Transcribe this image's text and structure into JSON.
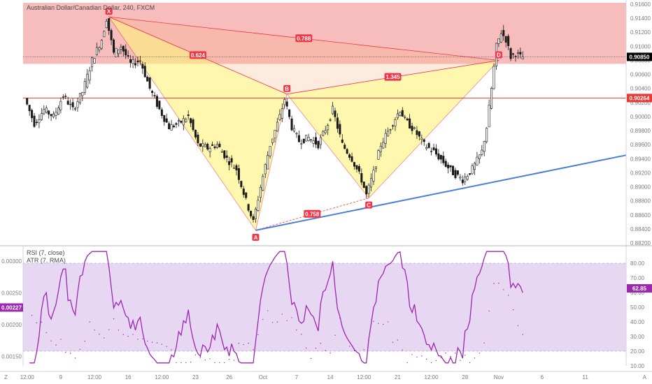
{
  "header": {
    "symbol_line": "Australian Dollar/Canadian Dollar, 240, FXCM"
  },
  "colors": {
    "up": "#1a1a1a",
    "down": "#1a1a1a",
    "pattern_fill": "#fff27a",
    "pattern_line": "#f23645",
    "zone_fill": "#f4a5a5",
    "trend": "#4a7fd8",
    "rsi": "#9c27b0",
    "rsi_band": "#e1cdf0",
    "atr": "#9c27b0"
  },
  "chart_data": [
    {
      "type": "candlestick",
      "y_axis_ticks": [
        "0.91600",
        "0.91400",
        "0.91200",
        "0.91000",
        "0.90800",
        "0.90600",
        "0.90400",
        "0.90200",
        "0.90000",
        "0.89800",
        "0.89600",
        "0.89400",
        "0.89200",
        "0.89000",
        "0.88800",
        "0.88600",
        "0.88400",
        "0.88200"
      ],
      "ylim": [
        0.8818,
        0.9162
      ],
      "x_axis_ticks": [
        "12:00",
        "9",
        "12:00",
        "16",
        "12:00",
        "23",
        "26",
        "Oct",
        "7",
        "14",
        "12:00",
        "21",
        "12:00",
        "28",
        "Nov",
        "6",
        "11"
      ],
      "path": [
        [
          0,
          0.9026
        ],
        [
          4,
          0.899
        ],
        [
          8,
          0.901
        ],
        [
          12,
          0.9
        ],
        [
          16,
          0.903
        ],
        [
          20,
          0.901
        ],
        [
          24,
          0.9035
        ],
        [
          28,
          0.908
        ],
        [
          32,
          0.911
        ],
        [
          34,
          0.914
        ],
        [
          37,
          0.909
        ],
        [
          40,
          0.91
        ],
        [
          44,
          0.9075
        ],
        [
          48,
          0.908
        ],
        [
          52,
          0.904
        ],
        [
          56,
          0.901
        ],
        [
          60,
          0.8985
        ],
        [
          64,
          0.899
        ],
        [
          68,
          0.9
        ],
        [
          72,
          0.896
        ],
        [
          76,
          0.8955
        ],
        [
          80,
          0.896
        ],
        [
          84,
          0.894
        ],
        [
          88,
          0.8925
        ],
        [
          92,
          0.888
        ],
        [
          95,
          0.885
        ],
        [
          98,
          0.89
        ],
        [
          102,
          0.896
        ],
        [
          106,
          0.9
        ],
        [
          108,
          0.9025
        ],
        [
          111,
          0.8985
        ],
        [
          114,
          0.8965
        ],
        [
          118,
          0.897
        ],
        [
          122,
          0.896
        ],
        [
          126,
          0.899
        ],
        [
          128,
          0.901
        ],
        [
          132,
          0.896
        ],
        [
          136,
          0.894
        ],
        [
          140,
          0.891
        ],
        [
          142,
          0.8888
        ],
        [
          145,
          0.892
        ],
        [
          148,
          0.896
        ],
        [
          152,
          0.8985
        ],
        [
          156,
          0.901
        ],
        [
          158,
          0.8995
        ],
        [
          162,
          0.898
        ],
        [
          166,
          0.896
        ],
        [
          170,
          0.895
        ],
        [
          174,
          0.8935
        ],
        [
          178,
          0.892
        ],
        [
          182,
          0.891
        ],
        [
          186,
          0.8925
        ],
        [
          190,
          0.895
        ],
        [
          192,
          0.8985
        ],
        [
          194,
          0.904
        ],
        [
          196,
          0.91
        ],
        [
          198,
          0.912
        ],
        [
          200,
          0.911
        ],
        [
          202,
          0.9085
        ],
        [
          204,
          0.909
        ],
        [
          206,
          0.9085
        ]
      ],
      "n_candles": 207,
      "points": [
        {
          "label": "X",
          "index": 34,
          "value": 0.9142
        },
        {
          "label": "A",
          "index": 95,
          "value": 0.8838
        },
        {
          "label": "B",
          "index": 108,
          "value": 0.9032
        },
        {
          "label": "C",
          "index": 142,
          "value": 0.8884
        },
        {
          "label": "D",
          "index": 196,
          "value": 0.908
        }
      ],
      "ratios": [
        {
          "label": "0.624",
          "from": "X",
          "to": "B"
        },
        {
          "label": "0.788",
          "from": "X",
          "to": "D"
        },
        {
          "label": "1.345",
          "from": "B",
          "to": "D"
        },
        {
          "label": "0.758",
          "from": "A",
          "to": "C"
        }
      ],
      "resistance_zone": [
        0.9075,
        0.9162
      ],
      "horizontal_line": 0.90264,
      "trendline": [
        [
          95,
          0.8838
        ],
        [
          230,
          0.8945
        ]
      ],
      "last_price": "0.90850",
      "last_value": 0.9085,
      "line_price": "0.90264"
    },
    {
      "type": "line",
      "indicators": [
        "RSI (7, close)",
        "ATR (7, RMA)"
      ],
      "rsi_band": [
        20,
        80
      ],
      "rsi_ylim": [
        10,
        90
      ],
      "rsi_ticks": [
        "80.00",
        "70.00",
        "60.00",
        "50.00",
        "40.00",
        "30.00",
        "20.00",
        "10.00"
      ],
      "atr_ticks": [
        "0.00300",
        "0.00250",
        "0.00200",
        "0.00150"
      ],
      "atr_ylim": [
        0.00135,
        0.0032
      ],
      "rsi_last": "62.85",
      "atr_last": "0.00227",
      "rsi_last_value": 62.85,
      "atr_last_value": 0.00227
    }
  ],
  "corners": {
    "left": "Z",
    "right": "A"
  }
}
